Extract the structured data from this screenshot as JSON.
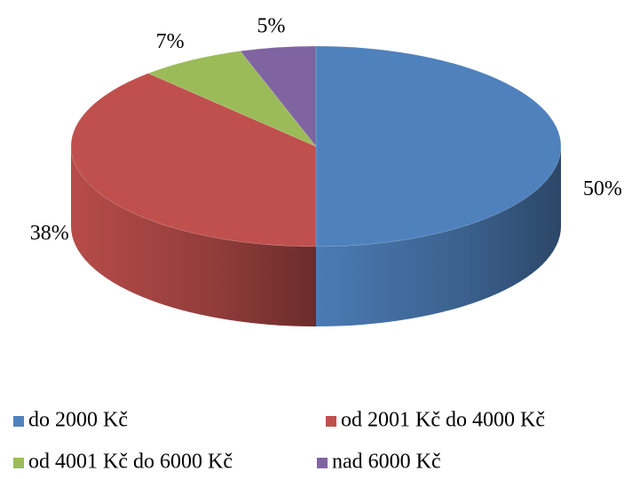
{
  "chart_data": {
    "type": "pie",
    "categories": [
      "do 2000 Kč",
      "od 2001 Kč do 4000 Kč",
      "od 4001 Kč do 6000 Kč",
      "nad 6000 Kč"
    ],
    "values": [
      50,
      38,
      7,
      5
    ],
    "value_labels": [
      "50%",
      "38%",
      "7%",
      "5%"
    ],
    "colors": [
      "#4f81bd",
      "#c0504d",
      "#9bbb59",
      "#8064a2"
    ],
    "legend": "bottom"
  }
}
